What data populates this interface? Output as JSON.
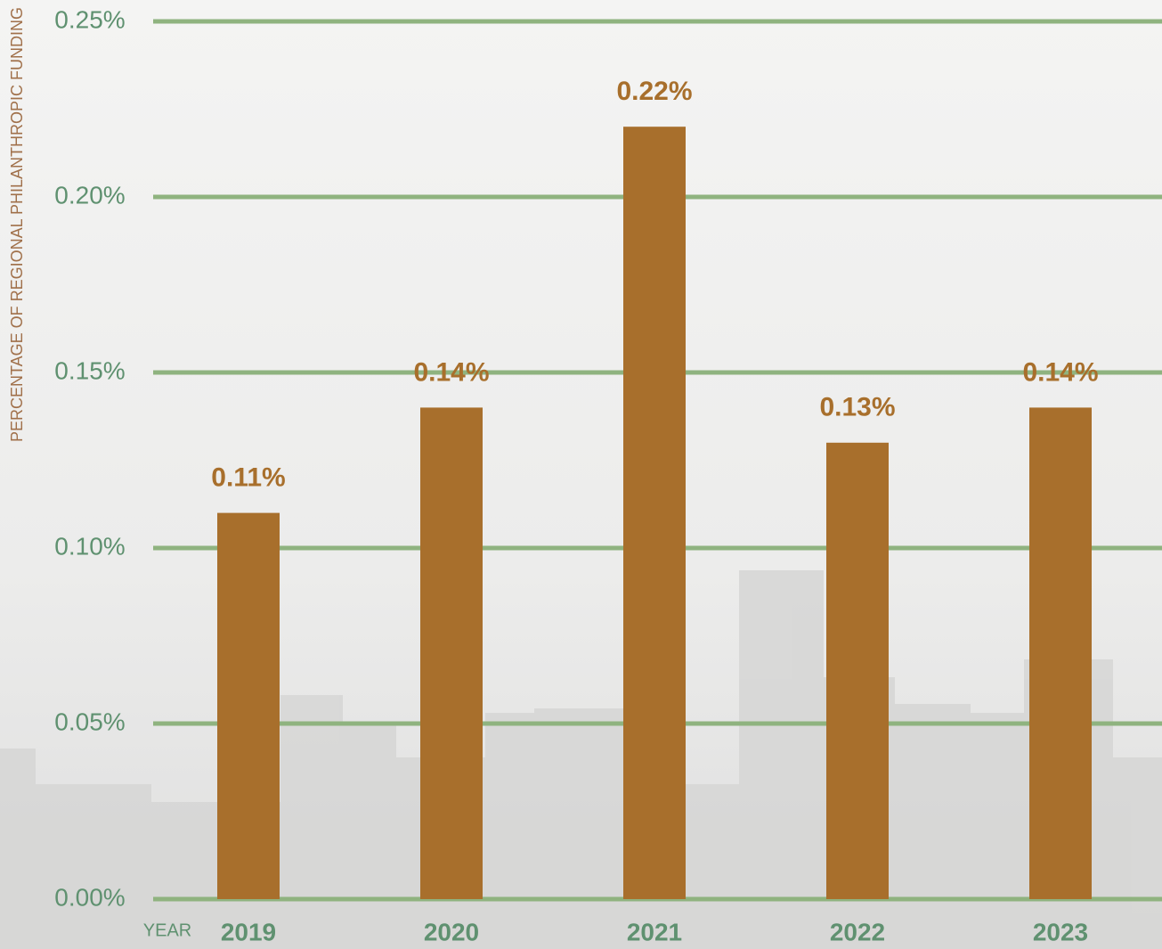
{
  "chart_data": {
    "type": "bar",
    "y_label": "PERCENTAGE OF REGIONAL PHILANTHROPIC FUNDING",
    "x_label": "YEAR",
    "categories": [
      "2019",
      "2020",
      "2021",
      "2022",
      "2023"
    ],
    "values": [
      0.11,
      0.14,
      0.22,
      0.13,
      0.14
    ],
    "value_labels": [
      "0.11%",
      "0.14%",
      "0.22%",
      "0.13%",
      "0.14%"
    ],
    "color": "#a86f2c",
    "ylim": [
      0,
      0.25
    ],
    "yticks": [
      {
        "value": 0,
        "label": "0.00%"
      },
      {
        "value": 0.05,
        "label": "0.05%"
      },
      {
        "value": 0.1,
        "label": "0.10%"
      },
      {
        "value": 0.15,
        "label": "0.15%"
      },
      {
        "value": 0.2,
        "label": "0.20%"
      },
      {
        "value": 0.25,
        "label": "0.25%"
      }
    ],
    "grid": true
  }
}
